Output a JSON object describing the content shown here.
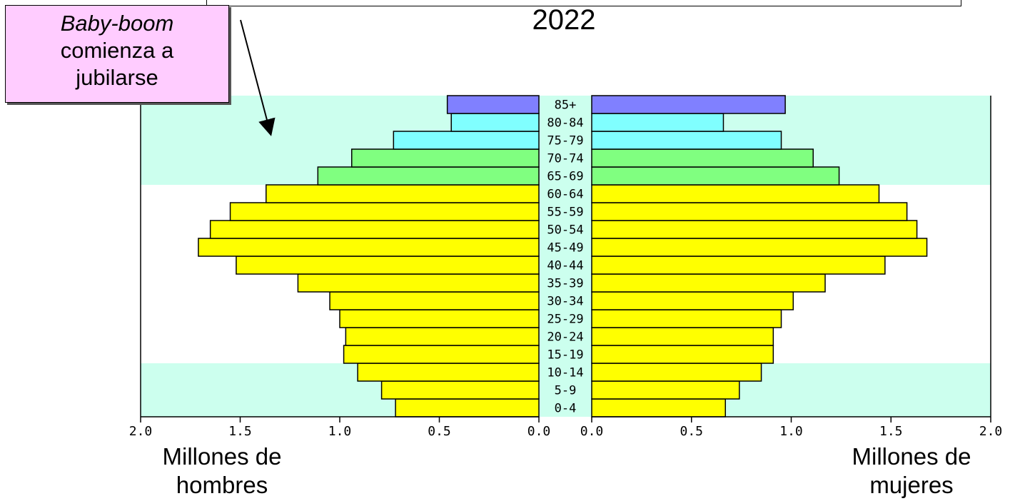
{
  "title": "2022",
  "callout": {
    "line1": "Baby-boom",
    "line2": "comienza a",
    "line3": "jubilarse"
  },
  "captions": {
    "left_line1": "Millones de",
    "left_line2": "hombres",
    "right_line1": "Millones de",
    "right_line2": "mujeres"
  },
  "colors": {
    "band_bg": "#ccffee",
    "yellow": "#ffff00",
    "green": "#80ff80",
    "cyan": "#80ffff",
    "blue": "#8080ff",
    "callout_bg": "#ffccff"
  },
  "chart_data": {
    "type": "bar",
    "subtype": "population-pyramid",
    "categories": [
      "0-4",
      "5-9",
      "10-14",
      "15-19",
      "20-24",
      "25-29",
      "30-34",
      "35-39",
      "40-44",
      "45-49",
      "50-54",
      "55-59",
      "60-64",
      "65-69",
      "70-74",
      "75-79",
      "80-84",
      "85+"
    ],
    "series": [
      {
        "side": "left",
        "values": [
          0.72,
          0.79,
          0.91,
          0.98,
          0.97,
          1.0,
          1.05,
          1.21,
          1.52,
          1.71,
          1.65,
          1.55,
          1.37,
          1.11,
          0.94,
          0.73,
          0.44,
          0.46
        ]
      },
      {
        "side": "right",
        "values": [
          0.67,
          0.74,
          0.85,
          0.91,
          0.91,
          0.95,
          1.01,
          1.17,
          1.47,
          1.68,
          1.63,
          1.58,
          1.44,
          1.24,
          1.11,
          0.95,
          0.66,
          0.97
        ]
      }
    ],
    "bar_colors": [
      "yellow",
      "yellow",
      "yellow",
      "yellow",
      "yellow",
      "yellow",
      "yellow",
      "yellow",
      "yellow",
      "yellow",
      "yellow",
      "yellow",
      "yellow",
      "green",
      "green",
      "cyan",
      "cyan",
      "blue"
    ],
    "xlim": [
      0,
      2.0
    ],
    "xticks": [
      "2.0",
      "1.5",
      "1.0",
      "0.5",
      "0.0"
    ],
    "xticks_right": [
      "0.0",
      "0.5",
      "1.0",
      "1.5",
      "2.0"
    ],
    "shaded_bands": [
      {
        "from_category": "0-4",
        "to_category": "10-14"
      },
      {
        "from_category": "65-69",
        "to_category": "85+"
      }
    ]
  }
}
